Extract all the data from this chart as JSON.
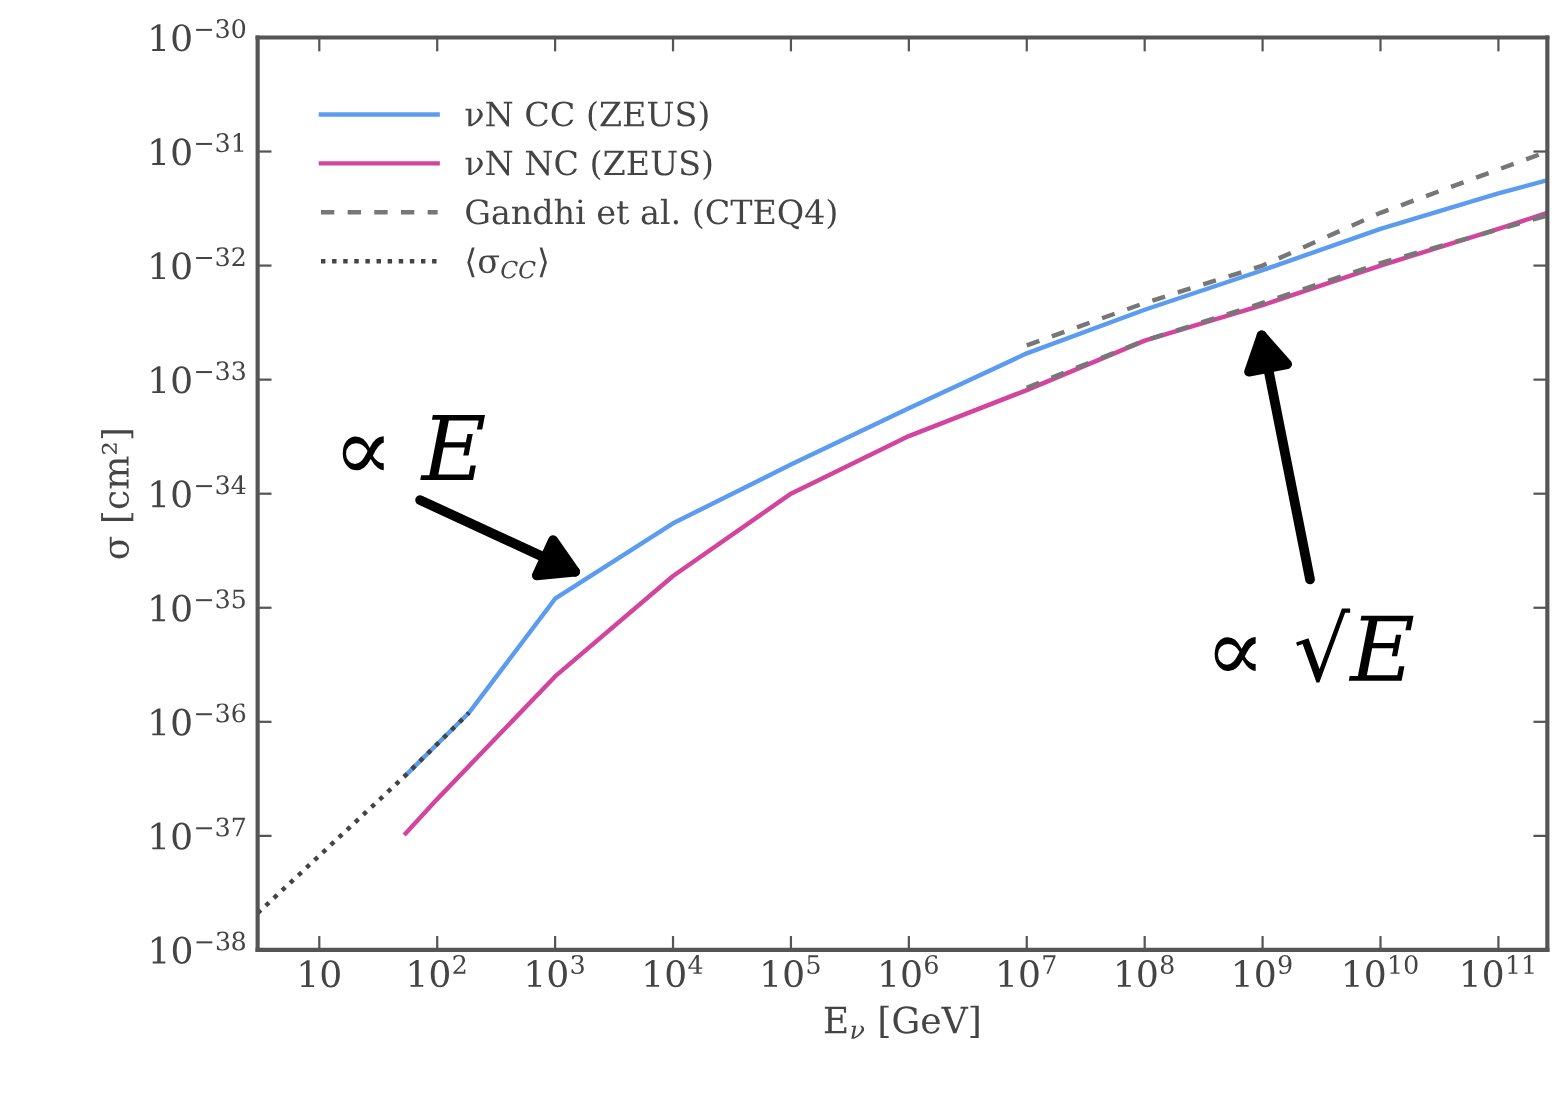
{
  "chart_data": {
    "type": "line",
    "xlabel": "E$_{ν}$ [GeV]",
    "ylabel": "σ [cm²]",
    "log": "xy",
    "grid": false,
    "legend": "top left",
    "xlim": [
      3,
      260000000000.0
    ],
    "ylim": [
      1e-38,
      1e-30
    ],
    "xticks": [
      {
        "value": 10,
        "label": "10"
      },
      {
        "value": 100,
        "label": "10$^{2}$"
      },
      {
        "value": 1000,
        "label": "10$^{3}$"
      },
      {
        "value": 10000,
        "label": "10$^{4}$"
      },
      {
        "value": 100000.0,
        "label": "10$^{5}$"
      },
      {
        "value": 1000000.0,
        "label": "10$^{6}$"
      },
      {
        "value": 10000000.0,
        "label": "10$^{7}$"
      },
      {
        "value": 100000000.0,
        "label": "10$^{8}$"
      },
      {
        "value": 1000000000.0,
        "label": "10$^{9}$"
      },
      {
        "value": 10000000000.0,
        "label": "10$^{10}$"
      },
      {
        "value": 100000000000.0,
        "label": "10$^{11}$"
      }
    ],
    "yticks": [
      {
        "value": 1e-38,
        "label": "10$^{−38}$"
      },
      {
        "value": 1e-37,
        "label": "10$^{−37}$"
      },
      {
        "value": 1e-36,
        "label": "10$^{−36}$"
      },
      {
        "value": 1e-35,
        "label": "10$^{−35}$"
      },
      {
        "value": 1e-34,
        "label": "10$^{−34}$"
      },
      {
        "value": 1e-33,
        "label": "10$^{−33}$"
      },
      {
        "value": 1e-32,
        "label": "10$^{−32}$"
      },
      {
        "value": 1e-31,
        "label": "10$^{−31}$"
      },
      {
        "value": 1e-30,
        "label": "10$^{−30}$"
      }
    ],
    "series": [
      {
        "name": "νN CC (ZEUS)",
        "color": "#5b9cf0",
        "line_style": "solid",
        "x": [
          54,
          186,
          1000,
          10000,
          100000.0,
          1000000.0,
          10000000.0,
          100000000.0,
          1000000000.0,
          10000000000.0,
          100000000000.0,
          260000000000.0
        ],
        "values": [
          3.4e-37,
          1.2e-36,
          1.2e-35,
          5.5e-35,
          1.8e-34,
          5.6e-34,
          1.7e-33,
          4.1e-33,
          9.1e-33,
          2.1e-32,
          4.3e-32,
          5.6e-32
        ]
      },
      {
        "name": "νN NC (ZEUS)",
        "color": "#d2449e",
        "line_style": "solid",
        "x": [
          54,
          100,
          1000,
          10000,
          100000.0,
          1000000.0,
          10000000.0,
          100000000.0,
          1000000000.0,
          10000000000.0,
          100000000000.0,
          260000000000.0
        ],
        "values": [
          1.05e-37,
          2.1e-37,
          2.5e-36,
          1.9e-35,
          1e-34,
          3.2e-34,
          8.1e-34,
          2.2e-33,
          4.5e-33,
          1e-32,
          2.1e-32,
          2.9e-32
        ]
      },
      {
        "name": "Gandhi et al. (CTEQ4)",
        "color": "#777777",
        "line_style": "dashed",
        "x": [
          10000000.0,
          100000000.0,
          1000000000.0,
          10000000000.0,
          260000000000.0
        ],
        "values": [
          2e-33,
          4.7e-33,
          1e-32,
          2.9e-32,
          1e-31
        ]
      },
      {
        "color": "#777777",
        "line_style": "dashed",
        "x": [
          10000000.0,
          100000000.0,
          1000000000.0,
          10000000000.0,
          260000000000.0
        ],
        "values": [
          8.5e-34,
          2.2e-33,
          4.7e-33,
          1.05e-32,
          2.75e-32
        ]
      },
      {
        "name": "⟨σ$_{CC}$⟩",
        "color": "#444444",
        "line_style": "dotted",
        "x": [
          3,
          54,
          186
        ],
        "values": [
          2.1e-38,
          3.4e-37,
          1.2e-36
        ]
      }
    ],
    "annotations": [
      "∝ E",
      "∝ √E"
    ]
  }
}
